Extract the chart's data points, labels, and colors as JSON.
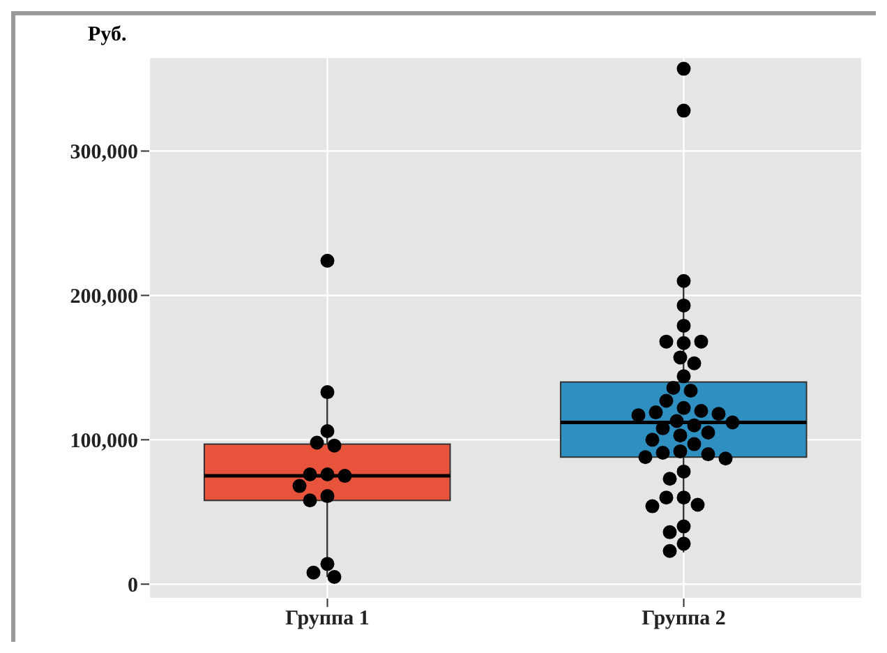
{
  "chart_data": {
    "type": "box",
    "ylabel": "Руб.",
    "categories": [
      "Группа 1",
      "Группа 2"
    ],
    "colors": [
      "#e8533b",
      "#2f8fc0"
    ],
    "boxes": [
      {
        "low": 5000,
        "q1": 58000,
        "median": 75000,
        "q3": 97000,
        "high": 132000
      },
      {
        "low": 22000,
        "q1": 88000,
        "median": 112000,
        "q3": 140000,
        "high": 210000
      }
    ],
    "series": [
      {
        "type": "scatter",
        "color": "#000000",
        "x": [
          "Группа 1",
          "Группа 1",
          "Группа 1",
          "Группа 1",
          "Группа 1",
          "Группа 1",
          "Группа 1",
          "Группа 1",
          "Группа 1",
          "Группа 1",
          "Группа 1",
          "Группа 1",
          "Группа 1",
          "Группа 1",
          "Группа 2",
          "Группа 2",
          "Группа 2",
          "Группа 2",
          "Группа 2",
          "Группа 2",
          "Группа 2",
          "Группа 2",
          "Группа 2",
          "Группа 2",
          "Группа 2",
          "Группа 2",
          "Группа 2",
          "Группа 2",
          "Группа 2",
          "Группа 2",
          "Группа 2",
          "Группа 2",
          "Группа 2",
          "Группа 2",
          "Группа 2",
          "Группа 2",
          "Группа 2",
          "Группа 2",
          "Группа 2",
          "Группа 2",
          "Группа 2",
          "Группа 2",
          "Группа 2",
          "Группа 2",
          "Группа 2",
          "Группа 2",
          "Группа 2",
          "Группа 2",
          "Группа 2",
          "Группа 2",
          "Группа 2",
          "Группа 2",
          "Группа 2",
          "Группа 2",
          "Группа 2",
          "Группа 2"
        ],
        "values": [
          224000,
          133000,
          106000,
          98000,
          96000,
          76000,
          76000,
          75000,
          68000,
          61000,
          58000,
          14000,
          8000,
          5000,
          357000,
          328000,
          210000,
          193000,
          179000,
          167000,
          168000,
          168000,
          157000,
          153000,
          144000,
          136000,
          134000,
          127000,
          122000,
          120000,
          119000,
          118000,
          117000,
          113000,
          112000,
          110000,
          108000,
          105000,
          103000,
          100000,
          97000,
          92000,
          91000,
          90000,
          88000,
          87000,
          78000,
          73000,
          60000,
          60000,
          55000,
          54000,
          40000,
          36000,
          28000,
          23000
        ]
      }
    ],
    "ylim": [
      -10000,
      365000
    ],
    "yticks": [
      0,
      {
        "value": 100000,
        "label": "100,000"
      },
      {
        "value": 200000,
        "label": "200,000"
      },
      {
        "value": 300000,
        "label": "300,000"
      }
    ],
    "grid": true
  }
}
